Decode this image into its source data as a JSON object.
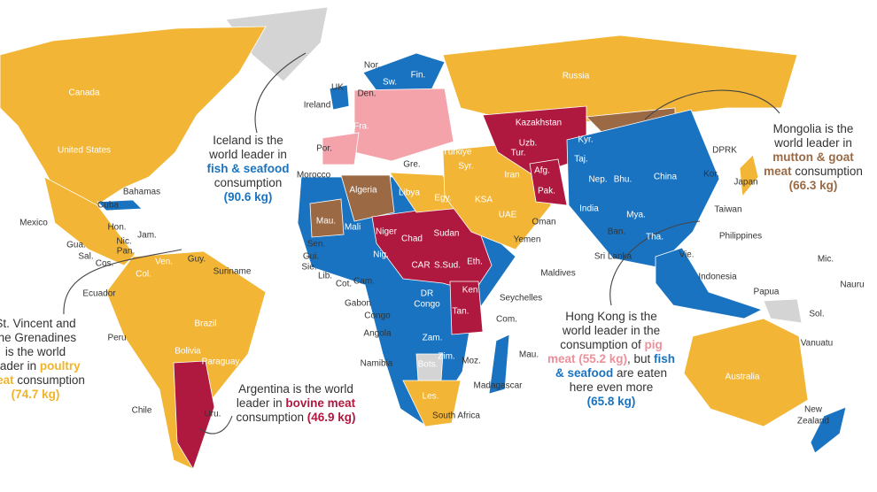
{
  "annotations": [
    {
      "lines": [
        [
          {
            "text": "Iceland is the"
          }
        ],
        [
          {
            "text": "world leader in"
          }
        ],
        [
          {
            "text": "fish & seafood",
            "color": "#1a73c0"
          }
        ],
        [
          {
            "text": "consumption"
          }
        ],
        [
          {
            "text": "(90.6 kg)",
            "color": "#1a73c0"
          }
        ]
      ]
    },
    {
      "lines": [
        [
          {
            "text": "Mongolia is the"
          }
        ],
        [
          {
            "text": "world leader in"
          }
        ],
        [
          {
            "text": "mutton & goat",
            "color": "#9b6a45"
          }
        ],
        [
          {
            "text": "meat",
            "color": "#9b6a45"
          },
          {
            "text": " consumption"
          }
        ],
        [
          {
            "text": "(66.3 kg)",
            "color": "#9b6a45"
          }
        ]
      ]
    },
    {
      "lines": [
        [
          {
            "text": "St. Vincent and"
          }
        ],
        [
          {
            "text": "the Grenadines"
          }
        ],
        [
          {
            "text": "is the world"
          }
        ],
        [
          {
            "text": "leader in "
          },
          {
            "text": "poultry",
            "color": "#f0b429"
          }
        ],
        [
          {
            "text": "meat",
            "color": "#f0b429"
          },
          {
            "text": " consumption"
          }
        ],
        [
          {
            "text": "(74.7 kg)",
            "color": "#f0b429"
          }
        ]
      ]
    },
    {
      "lines": [
        [
          {
            "text": "Argentina is the world"
          }
        ],
        [
          {
            "text": "leader in "
          },
          {
            "text": "bovine meat",
            "color": "#b0193f"
          }
        ],
        [
          {
            "text": "consumption "
          },
          {
            "text": "(46.9 kg)",
            "color": "#b0193f"
          }
        ]
      ]
    },
    {
      "lines": [
        [
          {
            "text": "Hong Kong is the"
          }
        ],
        [
          {
            "text": "world leader in the"
          }
        ],
        [
          {
            "text": "consumption of "
          },
          {
            "text": "pig",
            "color": "#ee8f9a"
          }
        ],
        [
          {
            "text": "meat (55.2 kg)",
            "color": "#ee8f9a"
          },
          {
            "text": ", but "
          },
          {
            "text": "fish",
            "color": "#1a73c0"
          }
        ],
        [
          {
            "text": "& seafood",
            "color": "#1a73c0"
          },
          {
            "text": " are eaten"
          }
        ],
        [
          {
            "text": "here even more"
          }
        ],
        [
          {
            "text": "(65.8 kg)",
            "color": "#1a73c0"
          }
        ]
      ]
    }
  ],
  "country_labels": [
    "Canada",
    "United States",
    "Mexico",
    "Cuba",
    "Bahamas",
    "Hon.",
    "Jam.",
    "Nic.",
    "Gua.",
    "Sal.",
    "Pan.",
    "Cos.",
    "Guy.",
    "Suriname",
    "Ecuador",
    "Col.",
    "Ven.",
    "Peru",
    "Brazil",
    "Bolivia",
    "Paraguay",
    "Chile",
    "Uru.",
    "Nor.",
    "Sw.",
    "Fin.",
    "UK",
    "Den.",
    "Ireland",
    "Fra.",
    "Por.",
    "Gre.",
    "Türkiye",
    "Syr.",
    "Morocco",
    "Algeria",
    "Libya",
    "Egy.",
    "KSA",
    "Iran",
    "UAE",
    "Oman",
    "Yemen",
    "Kazakhstan",
    "Uzb.",
    "Tur.",
    "Afg.",
    "Pak.",
    "Kyr.",
    "Taj.",
    "Nep.",
    "Bhu.",
    "India",
    "Ban.",
    "Mya.",
    "Tha.",
    "Vie.",
    "Sri Lanka",
    "Maldives",
    "China",
    "Russia",
    "DPRK",
    "Kor.",
    "Japan",
    "Taiwan",
    "Philippines",
    "Indonesia",
    "Papua",
    "Mic.",
    "Nauru",
    "Sol.",
    "Vanuatu",
    "Australia",
    "New",
    "Zealand",
    "Mau.",
    "Mali",
    "Niger",
    "Chad",
    "Sudan",
    "Sen.",
    "Gui.",
    "Sie.",
    "Lib.",
    "Cot.",
    "Nig.",
    "CAR",
    "S.Sud.",
    "Eth.",
    "Cam.",
    "Gabon",
    "Congo",
    "DR",
    "Congo",
    "Ken.",
    "Tan.",
    "Angola",
    "Zam.",
    "Zim.",
    "Moz.",
    "Namibia",
    "Bots.",
    "Madagascar",
    "Mau.",
    "Com.",
    "Seychelles",
    "South Africa",
    "Les."
  ]
}
